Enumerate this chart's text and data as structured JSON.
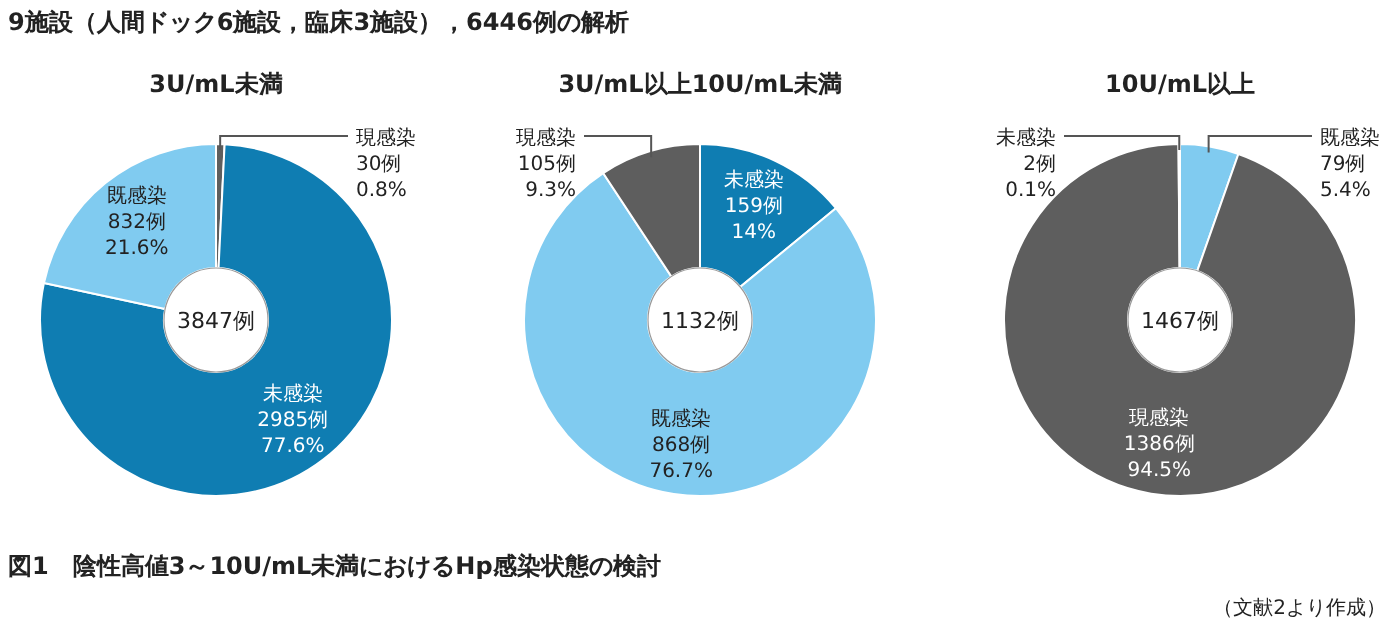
{
  "chart_data": [
    {
      "type": "donut",
      "title": "3U/mL未満",
      "categories": [
        "現感染",
        "未感染",
        "既感染"
      ],
      "values": [
        30,
        2985,
        832
      ],
      "colors": [
        "#5e5e5e",
        "#0f7db2",
        "#80cbf0"
      ],
      "data_labels": true,
      "value_labels": [
        "30例\n0.8%",
        "2985例\n77.6%",
        "832例\n21.6%"
      ],
      "annotations": [
        "3847例",
        "9施設（人間ドック6施設，臨床3施設），6446例の解析"
      ]
    },
    {
      "type": "donut",
      "title": "3U/mL以上10U/mL未満",
      "categories": [
        "未感染",
        "既感染",
        "現感染"
      ],
      "values": [
        159,
        868,
        105
      ],
      "colors": [
        "#0f7db2",
        "#80cbf0",
        "#5e5e5e"
      ],
      "data_labels": true,
      "value_labels": [
        "159例\n14%",
        "868例\n76.7%",
        "105例\n9.3%"
      ],
      "annotations": [
        "1132例"
      ]
    },
    {
      "type": "donut",
      "title": "10U/mL以上",
      "categories": [
        "既感染",
        "現感染",
        "未感染"
      ],
      "values": [
        79,
        1386,
        2
      ],
      "colors": [
        "#80cbf0",
        "#5e5e5e",
        "#0f7db2"
      ],
      "data_labels": true,
      "value_labels": [
        "79例\n5.4%",
        "1386例\n94.5%",
        "2例\n0.1%"
      ],
      "annotations": [
        "1467例",
        "図1　陰性高値3～10U/mL未満におけるHp感染状態の検討",
        "（文献2より作成）"
      ]
    }
  ]
}
